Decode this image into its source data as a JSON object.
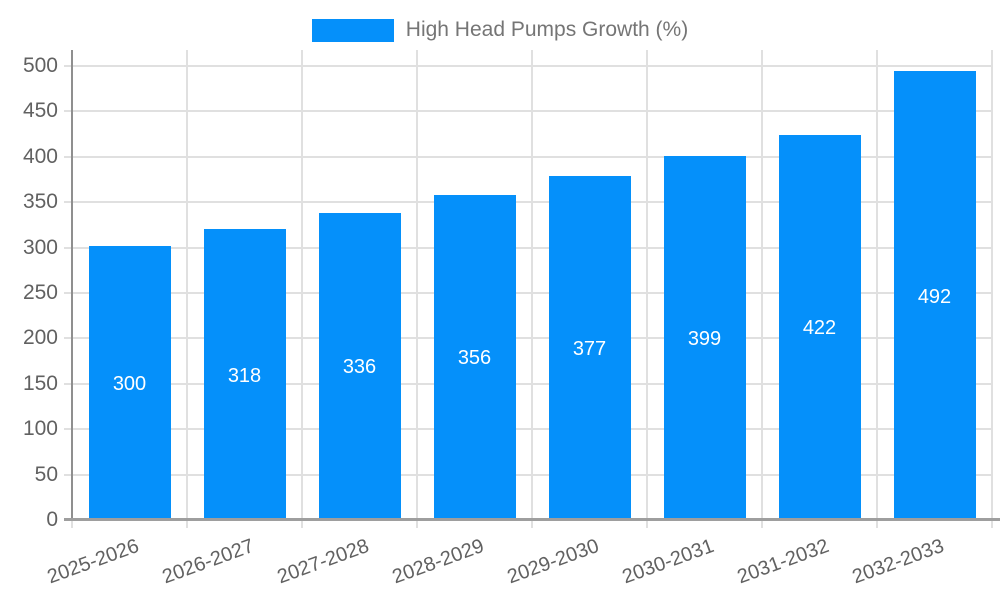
{
  "legend": {
    "label": "High Head Pumps Growth (%)"
  },
  "chart_data": {
    "type": "bar",
    "title": "High Head Pumps Growth (%)",
    "categories": [
      "2025-2026",
      "2026-2027",
      "2027-2028",
      "2028-2029",
      "2029-2030",
      "2030-2031",
      "2031-2032",
      "2032-2033"
    ],
    "series": [
      {
        "name": "High Head Pumps Growth (%)",
        "values": [
          300,
          318,
          336,
          356,
          377,
          399,
          422,
          492
        ]
      }
    ],
    "value_labels": [
      "300",
      "318",
      "336",
      "356",
      "377",
      "399",
      "422",
      "492"
    ],
    "xlabel": "",
    "ylabel": "",
    "ylim": [
      0,
      500
    ],
    "y_ticks": [
      0,
      50,
      100,
      150,
      200,
      250,
      300,
      350,
      400,
      450,
      500
    ],
    "grid": true,
    "legend_position": "top",
    "x_tick_rotation_deg": -20,
    "colors": {
      "bar": "#0590FA",
      "value_label": "#FFFFFF",
      "tick_label": "#616161",
      "legend_label": "#757575",
      "gridline": "#E0E0E0",
      "axis": "#9E9E9E",
      "background": "#FFFFFF"
    }
  }
}
